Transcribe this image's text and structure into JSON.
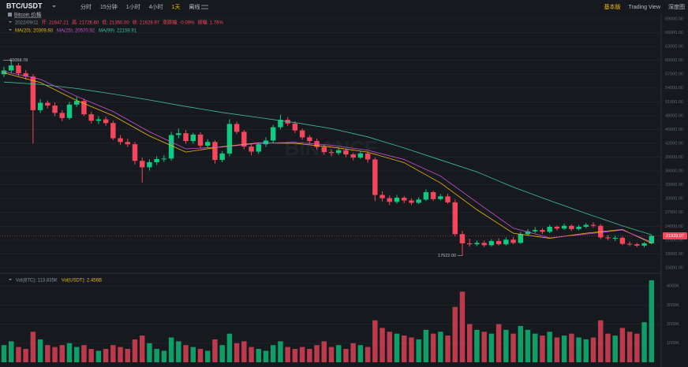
{
  "header": {
    "symbol": "BTC/USDT",
    "intervals": [
      "分时",
      "15分钟",
      "1小时",
      "4小时",
      "1天",
      "周线"
    ],
    "active_interval": "1天",
    "views": [
      "基本版",
      "Trading View",
      "深度图"
    ]
  },
  "info": {
    "name": "Bitcoin 价格",
    "ohlc": [
      "2022/09/11",
      "开: 21647.21",
      "高: 21726.60",
      "低: 21350.00",
      "收: 21629.97",
      "涨跌幅: -0.09%",
      "振幅: 1.76%"
    ]
  },
  "chart_data": {
    "type": "candlestick",
    "watermark": "BINANCE",
    "up_color": "#0ecb81",
    "down_color": "#f6465d",
    "grid": true,
    "ylim": [
      15000,
      69000
    ],
    "yticks": [
      {
        "value": 69000,
        "label": "69000.00"
      },
      {
        "value": 66000,
        "label": "66000.00"
      },
      {
        "value": 63000,
        "label": "63000.00"
      },
      {
        "value": 60000,
        "label": "60000.00"
      },
      {
        "value": 57000,
        "label": "57000.00"
      },
      {
        "value": 54000,
        "label": "54000.00"
      },
      {
        "value": 51000,
        "label": "51000.00"
      },
      {
        "value": 48000,
        "label": "48000.00"
      },
      {
        "value": 45000,
        "label": "45000.00"
      },
      {
        "value": 42000,
        "label": "42000.00"
      },
      {
        "value": 39000,
        "label": "39000.00"
      },
      {
        "value": 36000,
        "label": "36000.00"
      },
      {
        "value": 33000,
        "label": "33000.00"
      },
      {
        "value": 30000,
        "label": "30000.00"
      },
      {
        "value": 27000,
        "label": "27000.00"
      },
      {
        "value": 24000,
        "label": "24000.00"
      },
      {
        "value": 21000,
        "label": "21000.00"
      },
      {
        "value": 18000,
        "label": "18000.00"
      },
      {
        "value": 15000,
        "label": "15000.00"
      }
    ],
    "open": [
      57000,
      57800,
      58900,
      57200,
      56500,
      49200,
      50800,
      50200,
      48600,
      47500,
      50400,
      51200,
      48300,
      46900,
      47200,
      46400,
      43100,
      42300,
      41800,
      38200,
      36800,
      37900,
      38600,
      38700,
      43800,
      44200,
      42500,
      43900,
      41500,
      42300,
      38400,
      39800,
      46200,
      44500,
      41300,
      40200,
      41800,
      42600,
      45500,
      47100,
      46300,
      44800,
      43300,
      42500,
      41200,
      40100,
      39900,
      40500,
      39600,
      38900,
      39800,
      38500,
      30800,
      30100,
      29300,
      30200,
      29600,
      29100,
      29800,
      31400,
      29900,
      30500,
      29200,
      22300,
      20300,
      20100,
      20400,
      19900,
      20800,
      20100,
      21100,
      20400,
      22300,
      22900,
      23200,
      22800,
      23900,
      23500,
      24100,
      23400,
      23900,
      24300,
      24100,
      21600,
      21400,
      21500,
      20200,
      20100,
      19800,
      20300
    ],
    "high": [
      58600,
      60058.78,
      59400,
      57900,
      57000,
      51600,
      51300,
      50900,
      49200,
      51000,
      52100,
      51700,
      48900,
      47900,
      47800,
      46900,
      43800,
      43000,
      42300,
      38900,
      38500,
      39200,
      39400,
      44500,
      45200,
      44900,
      44300,
      44400,
      42900,
      42700,
      40300,
      47200,
      46700,
      44900,
      41900,
      42200,
      43300,
      46000,
      48200,
      47700,
      46800,
      45200,
      43800,
      43000,
      41700,
      40700,
      41100,
      40900,
      39900,
      40300,
      40200,
      38900,
      31600,
      30700,
      30800,
      30600,
      30100,
      30300,
      32000,
      31700,
      31000,
      31100,
      29800,
      23000,
      21300,
      20900,
      20900,
      21200,
      21400,
      21600,
      21700,
      22800,
      23400,
      23800,
      23600,
      24300,
      24200,
      24600,
      24400,
      24300,
      24700,
      24900,
      24500,
      22100,
      21900,
      21800,
      20700,
      20400,
      20600,
      22100
    ],
    "low": [
      56400,
      57200,
      56600,
      55800,
      42000,
      48600,
      49600,
      47900,
      46800,
      47100,
      49900,
      47900,
      46300,
      46200,
      45800,
      42700,
      41700,
      41200,
      37400,
      33500,
      36100,
      37300,
      38000,
      38200,
      43100,
      41900,
      41900,
      40900,
      41000,
      37600,
      37900,
      39200,
      44000,
      40700,
      39400,
      39700,
      41200,
      42000,
      45000,
      45800,
      44200,
      42800,
      41900,
      40600,
      39500,
      39200,
      39500,
      39000,
      38300,
      38600,
      37800,
      29500,
      29400,
      28600,
      28900,
      29000,
      28600,
      28800,
      29500,
      29500,
      29600,
      28900,
      21800,
      17622,
      19600,
      19700,
      19500,
      19600,
      19800,
      19800,
      20100,
      20200,
      21900,
      22500,
      22300,
      22500,
      23100,
      23200,
      23000,
      23100,
      23600,
      23700,
      21200,
      21000,
      20800,
      19900,
      19700,
      19500,
      19400,
      20100
    ],
    "close": [
      57800,
      58900,
      57200,
      56500,
      49200,
      50800,
      50200,
      48600,
      47500,
      50400,
      51200,
      48300,
      46900,
      47200,
      46400,
      43100,
      42300,
      41800,
      38200,
      36800,
      37900,
      38600,
      38700,
      43800,
      44200,
      42500,
      43900,
      41500,
      42300,
      38400,
      39800,
      46200,
      44500,
      41300,
      40200,
      41800,
      42600,
      45500,
      47100,
      46300,
      44800,
      43300,
      42500,
      41200,
      40100,
      39900,
      40500,
      39600,
      38900,
      39800,
      38500,
      30800,
      30100,
      29300,
      30200,
      29600,
      29100,
      29800,
      31400,
      29900,
      30500,
      29200,
      22300,
      20300,
      20100,
      20400,
      19900,
      20800,
      20100,
      21100,
      20400,
      22300,
      22900,
      23200,
      22800,
      23900,
      23500,
      24100,
      23400,
      23900,
      24300,
      24100,
      21600,
      21400,
      21500,
      20200,
      20100,
      19800,
      20300,
      21929.07
    ],
    "high_label": "60058.78",
    "low_label": "17622.00",
    "last_price_label": "21929.07",
    "series": [
      {
        "name": "MA(20)",
        "legend": "MA(20): 20309.60",
        "color": "#f0b90b",
        "x": [
          0,
          5,
          10,
          15,
          20,
          25,
          30,
          35,
          40,
          45,
          50,
          55,
          60,
          65,
          70,
          75,
          80,
          85,
          89
        ],
        "values": [
          57300,
          55200,
          51300,
          48000,
          43600,
          40100,
          41300,
          42100,
          42000,
          41200,
          40100,
          37800,
          33400,
          27600,
          22500,
          21400,
          22500,
          23300,
          20309.6
        ]
      },
      {
        "name": "MA(25)",
        "legend": "MA(25): 20570.92",
        "color": "#d04ed6",
        "x": [
          0,
          5,
          10,
          15,
          20,
          25,
          30,
          35,
          40,
          45,
          50,
          55,
          60,
          65,
          70,
          75,
          80,
          85,
          89
        ],
        "values": [
          57600,
          55900,
          52200,
          48900,
          44500,
          40800,
          41200,
          42000,
          42200,
          41600,
          40500,
          38500,
          34900,
          29200,
          23600,
          21500,
          22300,
          23200,
          20570.92
        ]
      },
      {
        "name": "MA(99)",
        "legend": "MA(99): 22159.91",
        "color": "#3fbfa0",
        "x": [
          0,
          5,
          10,
          15,
          20,
          25,
          30,
          35,
          40,
          45,
          50,
          55,
          60,
          65,
          70,
          75,
          80,
          85,
          89
        ],
        "values": [
          55300,
          54800,
          53900,
          52700,
          51400,
          50000,
          48700,
          47600,
          46500,
          45200,
          43400,
          41000,
          38400,
          35800,
          32500,
          29600,
          26800,
          24100,
          22159.91
        ]
      }
    ],
    "volume": {
      "legend": [
        "Vol(BTC): 113.835K",
        "Vol(USDT): 2.456B"
      ],
      "ylim": [
        0,
        4500
      ],
      "yticks": [
        {
          "value": 1000,
          "label": "1000K"
        },
        {
          "value": 2000,
          "label": "2000K"
        },
        {
          "value": 3000,
          "label": "3000K"
        },
        {
          "value": 4000,
          "label": "4000K"
        }
      ],
      "values": [
        900,
        1100,
        800,
        700,
        1600,
        1200,
        900,
        800,
        900,
        1000,
        800,
        900,
        700,
        600,
        700,
        900,
        800,
        700,
        1200,
        1400,
        1000,
        700,
        600,
        1300,
        1100,
        900,
        800,
        700,
        600,
        1200,
        900,
        1500,
        1000,
        1100,
        800,
        700,
        600,
        900,
        1100,
        800,
        700,
        800,
        700,
        900,
        1100,
        800,
        900,
        700,
        1000,
        900,
        800,
        2200,
        1800,
        1600,
        1500,
        1400,
        1300,
        1200,
        1700,
        1500,
        1600,
        1400,
        2900,
        3700,
        2000,
        1700,
        1600,
        1500,
        2000,
        1700,
        1500,
        1900,
        1700,
        1500,
        1400,
        1600,
        1300,
        1400,
        1500,
        1300,
        1200,
        1300,
        2200,
        1500,
        1400,
        1800,
        1600,
        1500,
        2100,
        4300
      ]
    }
  }
}
